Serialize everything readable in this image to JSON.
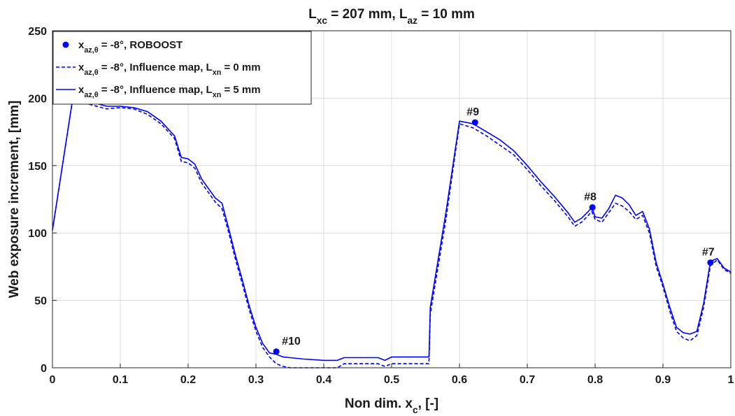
{
  "chart_data": {
    "type": "line",
    "title": {
      "parts": [
        [
          "L",
          ""
        ],
        [
          "xc",
          "sub"
        ],
        [
          " = 207 mm, L",
          ""
        ],
        [
          "az",
          "sub"
        ],
        [
          " = 10 mm",
          ""
        ]
      ]
    },
    "xlabel": {
      "parts": [
        [
          "Non dim. x",
          ""
        ],
        [
          "c",
          "sub"
        ],
        [
          ", [-]",
          ""
        ]
      ]
    },
    "ylabel": "Web exposure increment, [mm]",
    "xlim": [
      0,
      1
    ],
    "ylim": [
      0,
      250
    ],
    "xticks": [
      0,
      0.1,
      0.2,
      0.3,
      0.4,
      0.5,
      0.6,
      0.7,
      0.8,
      0.9,
      1
    ],
    "xtick_labels": [
      "0",
      "0.1",
      "0.2",
      "0.3",
      "0.4",
      "0.5",
      "0.6",
      "0.7",
      "0.8",
      "0.9",
      "1"
    ],
    "yticks": [
      0,
      50,
      100,
      150,
      200,
      250
    ],
    "ytick_labels": [
      "0",
      "50",
      "100",
      "150",
      "200",
      "250"
    ],
    "grid": true,
    "legend_position": "top-left",
    "colors": {
      "series": "#0000ff",
      "text": "#1a1a1a",
      "grid": "#dcdcdc",
      "axis": "#262626"
    },
    "series": [
      {
        "name": {
          "parts": [
            [
              "x",
              ""
            ],
            [
              "az,θ",
              "sub"
            ],
            [
              " = -8°, ROBOOST",
              ""
            ]
          ]
        },
        "style": "markers",
        "points": [
          {
            "x": 0.33,
            "y": 12,
            "label": "#10"
          },
          {
            "x": 0.623,
            "y": 182,
            "label": "#9"
          },
          {
            "x": 0.796,
            "y": 119,
            "label": "#8"
          },
          {
            "x": 0.97,
            "y": 78,
            "label": "#7"
          }
        ]
      },
      {
        "name": {
          "parts": [
            [
              "x",
              ""
            ],
            [
              "az,θ",
              "sub"
            ],
            [
              " = -8°, Influence map, L",
              ""
            ],
            [
              "xn",
              "sub"
            ],
            [
              " = 0 mm",
              ""
            ]
          ]
        },
        "style": "dashed",
        "x": [
          0,
          0.03,
          0.05,
          0.08,
          0.1,
          0.12,
          0.14,
          0.16,
          0.18,
          0.19,
          0.2,
          0.21,
          0.22,
          0.24,
          0.25,
          0.26,
          0.27,
          0.28,
          0.29,
          0.3,
          0.31,
          0.32,
          0.33,
          0.34,
          0.35,
          0.37,
          0.4,
          0.42,
          0.43,
          0.45,
          0.48,
          0.49,
          0.5,
          0.52,
          0.555,
          0.557,
          0.58,
          0.6,
          0.62,
          0.64,
          0.66,
          0.68,
          0.7,
          0.72,
          0.74,
          0.76,
          0.77,
          0.78,
          0.79,
          0.795,
          0.8,
          0.81,
          0.82,
          0.83,
          0.835,
          0.84,
          0.85,
          0.86,
          0.87,
          0.88,
          0.89,
          0.9,
          0.91,
          0.92,
          0.93,
          0.94,
          0.95,
          0.96,
          0.97,
          0.98,
          0.99,
          1.0
        ],
        "y": [
          102,
          200,
          196,
          192,
          193,
          192,
          188,
          181,
          170,
          153,
          152,
          148,
          137,
          123,
          118,
          100,
          80,
          62,
          43,
          27,
          15,
          8,
          3,
          1,
          0,
          0,
          0,
          0,
          3,
          3,
          3,
          1,
          3,
          3,
          3,
          40,
          110,
          181,
          178,
          172,
          165,
          158,
          147,
          135,
          124,
          112,
          105,
          108,
          113,
          116,
          110,
          108,
          115,
          122,
          121,
          120,
          116,
          110,
          113,
          100,
          75,
          60,
          42,
          27,
          22,
          20,
          24,
          45,
          76,
          80,
          73,
          70
        ]
      },
      {
        "name": {
          "parts": [
            [
              "x",
              ""
            ],
            [
              "az,θ",
              "sub"
            ],
            [
              " = -8°, Influence map, L",
              ""
            ],
            [
              "xn",
              "sub"
            ],
            [
              " = 5 mm",
              ""
            ]
          ]
        },
        "style": "solid",
        "x": [
          0,
          0.03,
          0.05,
          0.08,
          0.1,
          0.12,
          0.14,
          0.16,
          0.18,
          0.19,
          0.2,
          0.21,
          0.22,
          0.24,
          0.25,
          0.26,
          0.27,
          0.28,
          0.29,
          0.3,
          0.31,
          0.32,
          0.33,
          0.34,
          0.35,
          0.37,
          0.4,
          0.42,
          0.43,
          0.45,
          0.48,
          0.49,
          0.5,
          0.52,
          0.555,
          0.557,
          0.58,
          0.6,
          0.62,
          0.64,
          0.66,
          0.68,
          0.7,
          0.72,
          0.74,
          0.76,
          0.77,
          0.78,
          0.79,
          0.795,
          0.8,
          0.81,
          0.82,
          0.83,
          0.835,
          0.84,
          0.85,
          0.86,
          0.87,
          0.88,
          0.89,
          0.9,
          0.91,
          0.92,
          0.93,
          0.94,
          0.95,
          0.96,
          0.97,
          0.98,
          0.99,
          1.0
        ],
        "y": [
          102,
          200,
          198,
          194,
          194,
          193,
          190,
          183,
          172,
          156,
          155,
          151,
          140,
          126,
          122,
          103,
          83,
          65,
          46,
          30,
          18,
          11,
          10,
          8,
          7.5,
          6.5,
          5.5,
          5.5,
          7.5,
          7.5,
          7.5,
          5.5,
          8,
          8,
          8,
          45,
          115,
          183,
          181,
          175,
          169,
          161,
          150,
          138,
          127,
          115,
          108,
          111,
          116,
          119,
          112,
          111,
          118,
          128,
          127,
          126,
          121,
          113,
          116,
          103,
          78,
          62,
          45,
          30,
          26,
          25,
          27,
          48,
          79,
          81,
          74,
          71
        ]
      }
    ]
  }
}
